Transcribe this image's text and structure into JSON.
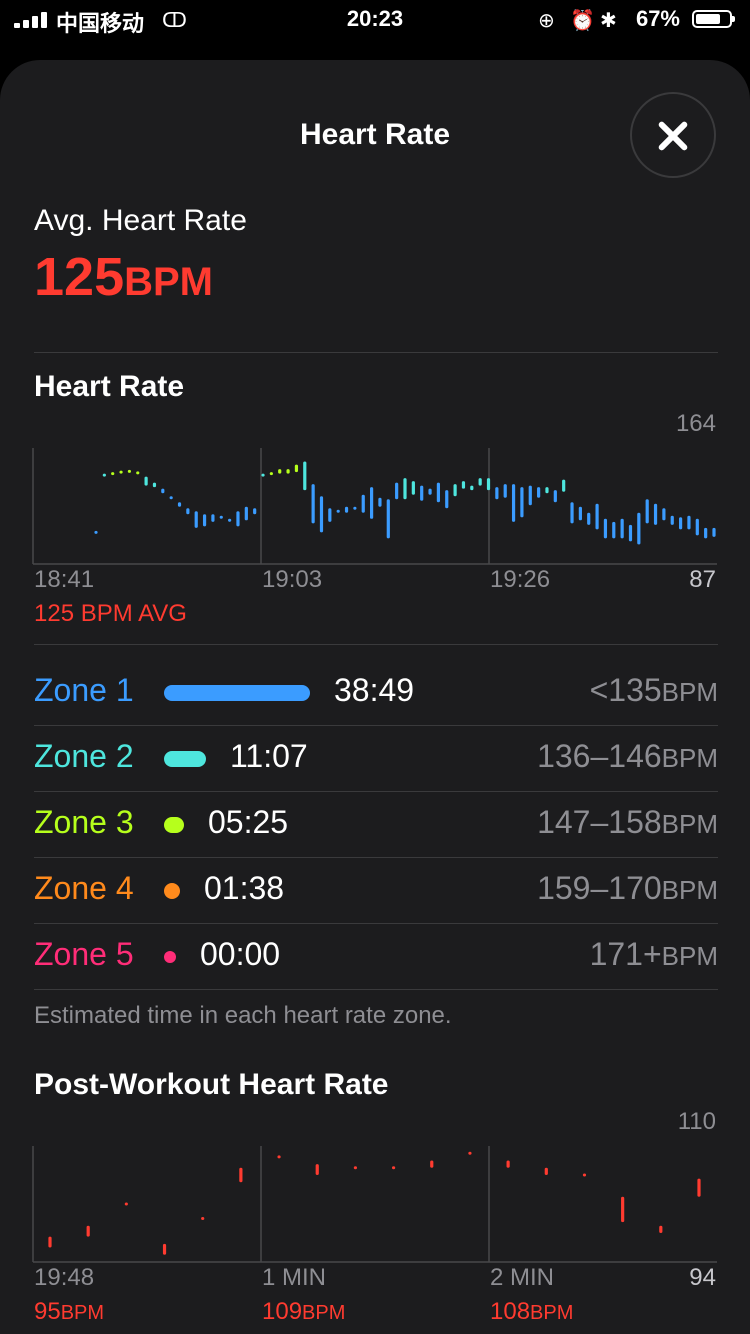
{
  "status_bar": {
    "carrier": "中国移动",
    "time": "20:23",
    "battery": "67%"
  },
  "sheet": {
    "title": "Heart Rate"
  },
  "summary": {
    "label": "Avg. Heart Rate",
    "value": "125",
    "unit": "BPM"
  },
  "hr_section": {
    "title": "Heart Rate",
    "max_label": "164",
    "min_label": "87",
    "x_ticks": [
      "18:41",
      "19:03",
      "19:26"
    ],
    "avg_note": "125 BPM AVG"
  },
  "zones": [
    {
      "name": "Zone 1",
      "time": "38:49",
      "range": "<135",
      "unit": "BPM",
      "color": "#3b9cff",
      "fraction": 1.0
    },
    {
      "name": "Zone 2",
      "time": "11:07",
      "range": "136–146",
      "unit": "BPM",
      "color": "#4ee6de",
      "fraction": 0.286
    },
    {
      "name": "Zone 3",
      "time": "05:25",
      "range": "147–158",
      "unit": "BPM",
      "color": "#b6ff1c",
      "fraction": 0.14
    },
    {
      "name": "Zone 4",
      "time": "01:38",
      "range": "159–170",
      "unit": "BPM",
      "color": "#ff8a1c",
      "fraction": 0.042
    },
    {
      "name": "Zone 5",
      "time": "00:00",
      "range": "171+",
      "unit": "BPM",
      "color": "#ff2d78",
      "fraction": 0.0
    }
  ],
  "zones_note": "Estimated time in each heart rate zone.",
  "post_section": {
    "title": "Post-Workout Heart Rate",
    "max_label": "110",
    "min_label": "94",
    "x_ticks": [
      "19:48",
      "1 MIN",
      "2 MIN"
    ],
    "stats": [
      {
        "value": "95",
        "unit": "BPM"
      },
      {
        "value": "109",
        "unit": "BPM"
      },
      {
        "value": "108",
        "unit": "BPM"
      }
    ]
  },
  "chart_data": [
    {
      "type": "range-bar",
      "title": "Heart Rate",
      "ylim": [
        87,
        164
      ],
      "x_ticks": [
        "18:41",
        "19:03",
        "19:26"
      ],
      "series": [
        {
          "values": [
            [
              108,
              108
            ],
            [
              146,
              146
            ],
            [
              147,
              147
            ],
            [
              148,
              148
            ],
            [
              148,
              149
            ],
            [
              147,
              148
            ],
            [
              139,
              145
            ],
            [
              138,
              141
            ],
            [
              134,
              137
            ],
            [
              130,
              132
            ],
            [
              125,
              128
            ],
            [
              120,
              124
            ],
            [
              111,
              122
            ],
            [
              112,
              120
            ],
            [
              115,
              120
            ],
            [
              117,
              119
            ],
            [
              115,
              117
            ],
            [
              112,
              122
            ],
            [
              116,
              125
            ],
            [
              120,
              124
            ],
            [
              146,
              146
            ],
            [
              146,
              148
            ],
            [
              147,
              150
            ],
            [
              147,
              150
            ],
            [
              148,
              153
            ],
            [
              136,
              155
            ],
            [
              114,
              140
            ],
            [
              108,
              132
            ],
            [
              115,
              124
            ],
            [
              121,
              123
            ],
            [
              121,
              125
            ],
            [
              123,
              125
            ],
            [
              121,
              133
            ],
            [
              117,
              138
            ],
            [
              125,
              131
            ],
            [
              104,
              130
            ],
            [
              130,
              141
            ],
            [
              130,
              144
            ],
            [
              133,
              142
            ],
            [
              129,
              139
            ],
            [
              133,
              137
            ],
            [
              128,
              141
            ],
            [
              124,
              136
            ],
            [
              132,
              140
            ],
            [
              137,
              142
            ],
            [
              136,
              139
            ],
            [
              139,
              144
            ],
            [
              136,
              144
            ],
            [
              130,
              138
            ],
            [
              131,
              140
            ],
            [
              115,
              140
            ],
            [
              118,
              138
            ],
            [
              126,
              139
            ],
            [
              131,
              138
            ],
            [
              134,
              138
            ],
            [
              128,
              136
            ],
            [
              135,
              143
            ],
            [
              114,
              128
            ],
            [
              116,
              125
            ],
            [
              113,
              121
            ],
            [
              110,
              127
            ],
            [
              104,
              117
            ],
            [
              104,
              115
            ],
            [
              104,
              117
            ],
            [
              102,
              113
            ],
            [
              100,
              121
            ],
            [
              114,
              130
            ],
            [
              113,
              127
            ],
            [
              116,
              124
            ],
            [
              113,
              119
            ],
            [
              110,
              118
            ],
            [
              110,
              119
            ],
            [
              106,
              117
            ],
            [
              104,
              111
            ],
            [
              105,
              111
            ]
          ]
        }
      ]
    },
    {
      "type": "range-bar",
      "title": "Post-Workout Heart Rate",
      "ylim": [
        94,
        110
      ],
      "x_ticks": [
        "19:48",
        "1 MIN",
        "2 MIN"
      ],
      "series": [
        {
          "values": [
            [
              96,
              97.5
            ],
            [
              97.5,
              99
            ],
            [
              102,
              102
            ],
            [
              95,
              96.5
            ],
            [
              100,
              100
            ],
            [
              105,
              107
            ],
            [
              108.5,
              108.5
            ],
            [
              106,
              107.5
            ],
            [
              107,
              107
            ],
            [
              107,
              107
            ],
            [
              107,
              108
            ],
            [
              109,
              109
            ],
            [
              107,
              108
            ],
            [
              106,
              107
            ],
            [
              106,
              106
            ],
            [
              99.5,
              103
            ],
            [
              98,
              99
            ],
            [
              103,
              105.5
            ]
          ]
        }
      ]
    }
  ]
}
